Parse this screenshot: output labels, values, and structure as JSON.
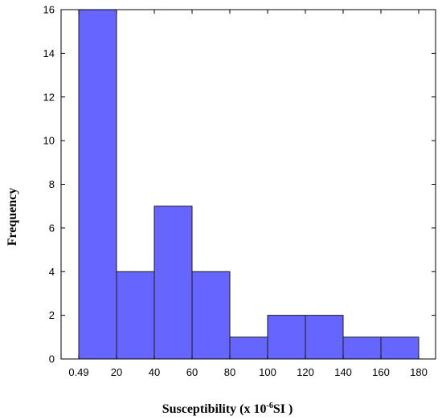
{
  "chart_data": {
    "type": "bar",
    "bins": [
      {
        "range": [
          0.49,
          20
        ],
        "count": 16
      },
      {
        "range": [
          20,
          40
        ],
        "count": 4
      },
      {
        "range": [
          40,
          60
        ],
        "count": 7
      },
      {
        "range": [
          60,
          80
        ],
        "count": 4
      },
      {
        "range": [
          80,
          100
        ],
        "count": 1
      },
      {
        "range": [
          100,
          120
        ],
        "count": 2
      },
      {
        "range": [
          120,
          140
        ],
        "count": 2
      },
      {
        "range": [
          140,
          160
        ],
        "count": 1
      },
      {
        "range": [
          160,
          180
        ],
        "count": 1
      }
    ],
    "x_ticks": [
      "0.49",
      "20",
      "40",
      "60",
      "80",
      "100",
      "120",
      "140",
      "160",
      "180"
    ],
    "y_ticks": [
      0,
      2,
      4,
      6,
      8,
      10,
      12,
      14,
      16
    ],
    "ylim": [
      0,
      16
    ],
    "xlabel_main": "Susceptibility (x 10",
    "xlabel_sup": "-6",
    "xlabel_tail": "SI )",
    "ylabel": "Frequency",
    "bar_color": "#6666ff",
    "grid": false,
    "legend": "none"
  }
}
